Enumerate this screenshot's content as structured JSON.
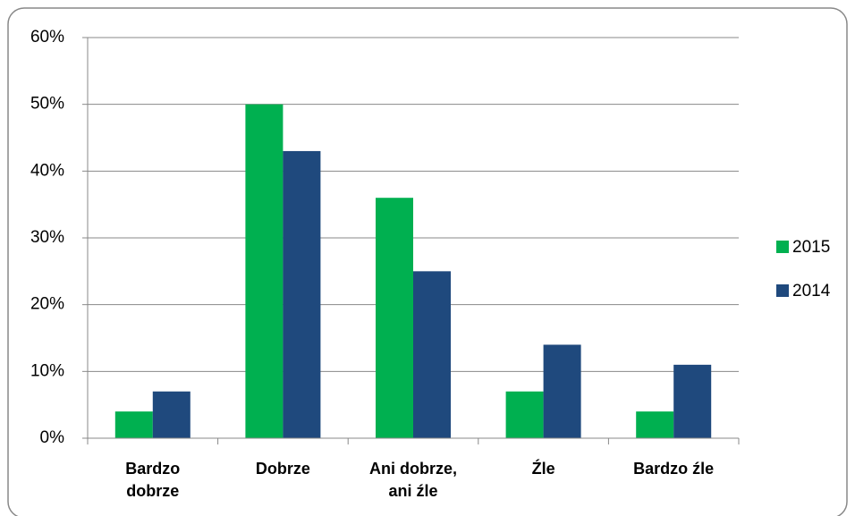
{
  "chart_data": {
    "type": "bar",
    "categories": [
      "Bardzo dobrze",
      "Dobrze",
      "Ani dobrze, ani źle",
      "Źle",
      "Bardzo źle"
    ],
    "series": [
      {
        "name": "2015",
        "color": "#00b050",
        "values": [
          4,
          50,
          36,
          7,
          4
        ]
      },
      {
        "name": "2014",
        "color": "#1f497d",
        "values": [
          7,
          43,
          25,
          14,
          11
        ]
      }
    ],
    "ylim": [
      0,
      60
    ],
    "yticks": [
      {
        "value": 0,
        "label": "0%"
      },
      {
        "value": 10,
        "label": "10%"
      },
      {
        "value": 20,
        "label": "20%"
      },
      {
        "value": 30,
        "label": "30%"
      },
      {
        "value": 40,
        "label": "40%"
      },
      {
        "value": 50,
        "label": "50%"
      },
      {
        "value": 60,
        "label": "60%"
      }
    ],
    "grid": true,
    "legend": "right"
  }
}
